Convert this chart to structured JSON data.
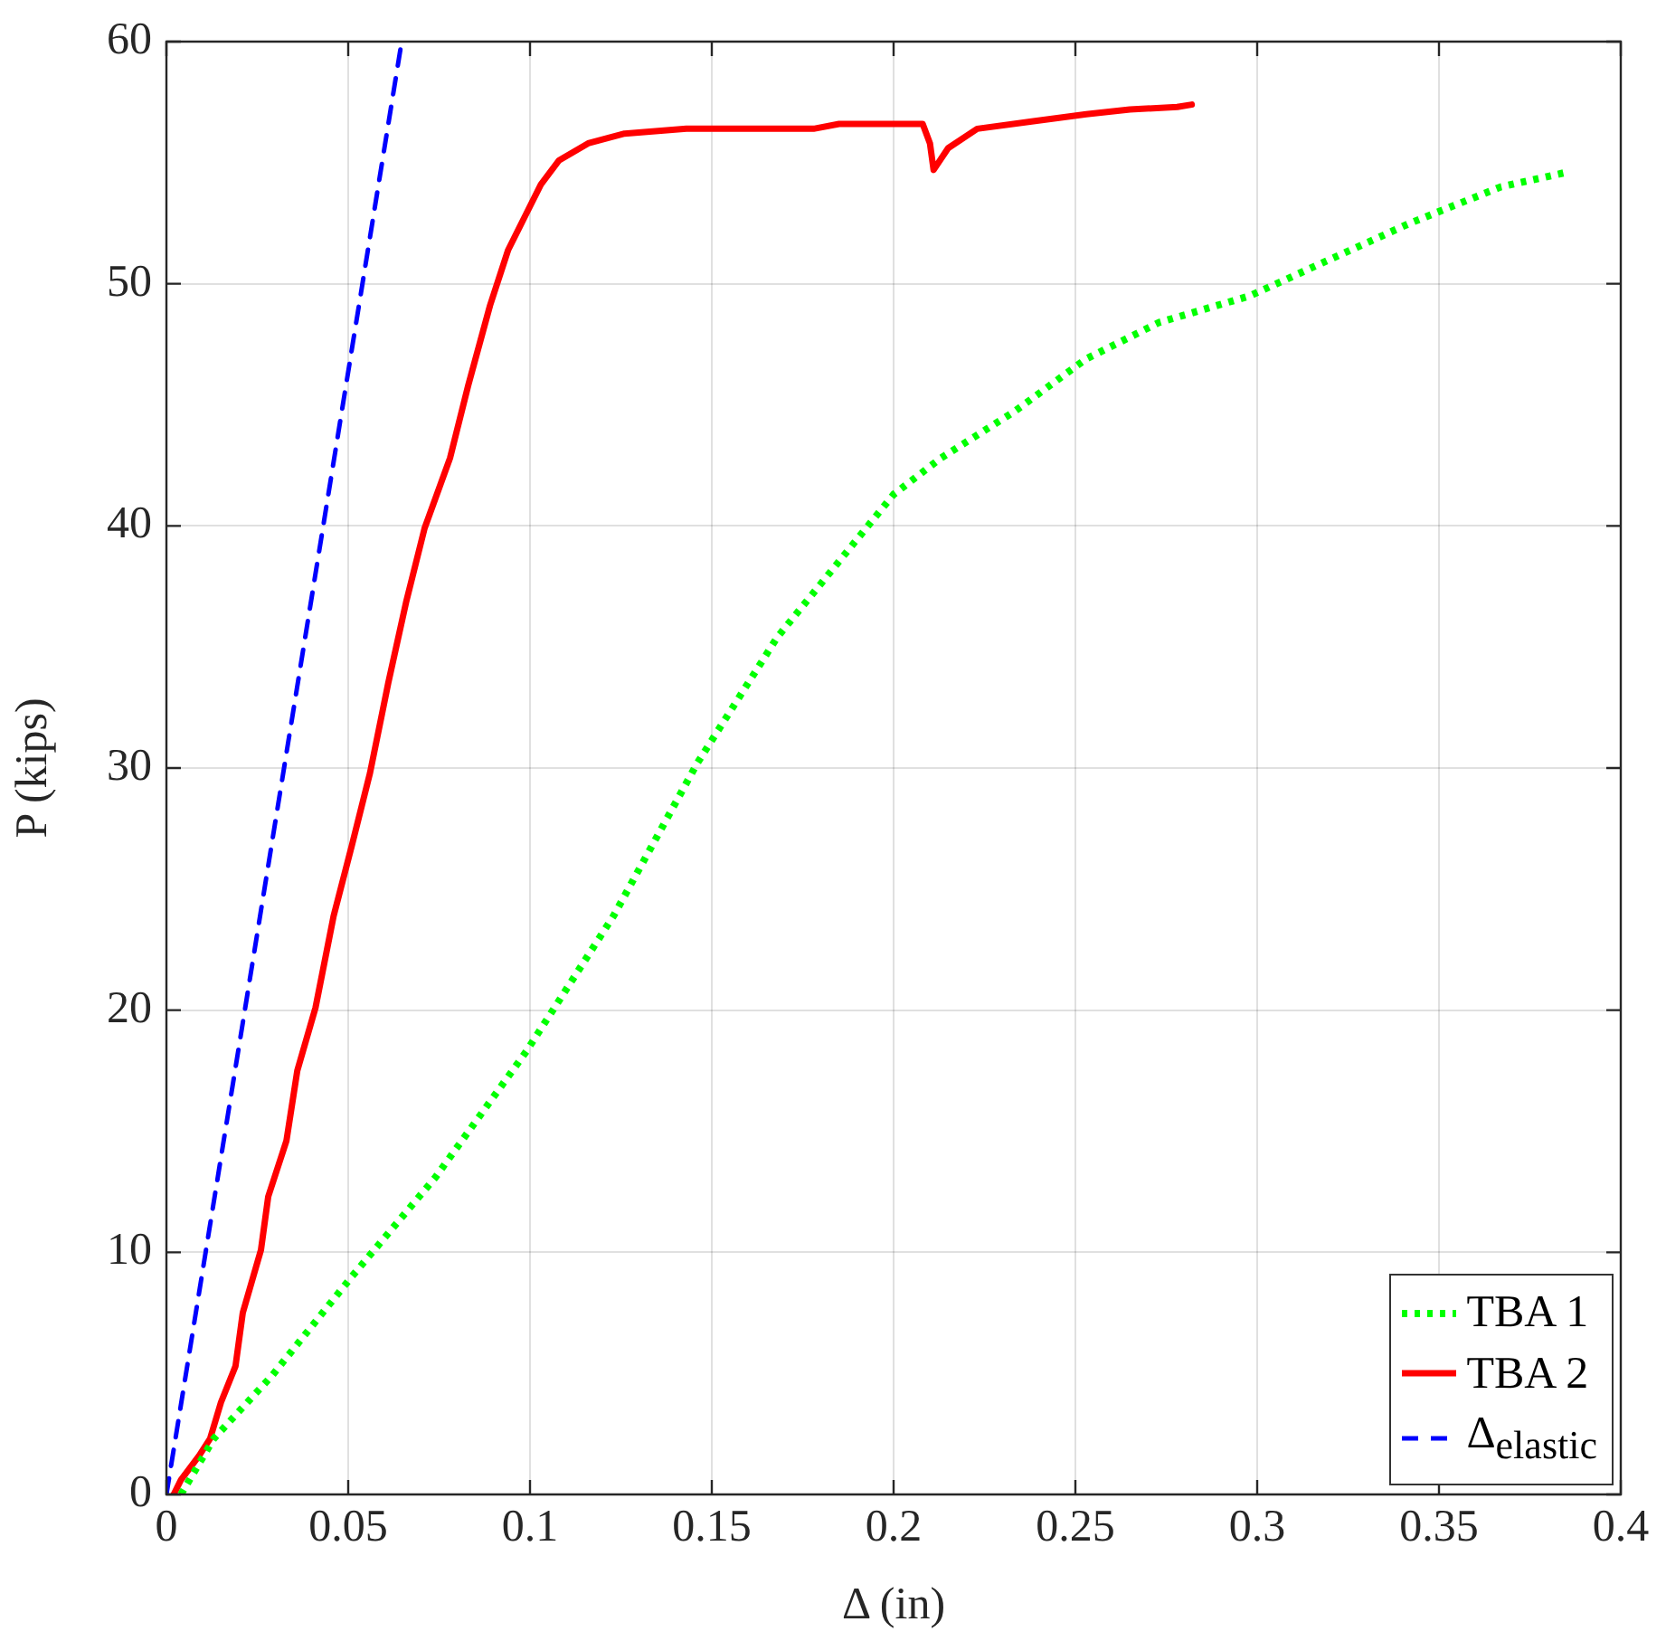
{
  "chart_data": {
    "type": "line",
    "xlabel": "Δ (in)",
    "ylabel": "P (kips)",
    "xlim": [
      0,
      0.4
    ],
    "xticks": [
      0,
      0.05,
      0.1,
      0.15,
      0.2,
      0.25,
      0.3,
      0.35,
      0.4
    ],
    "ylim": [
      0,
      60
    ],
    "yticks": [
      0,
      10,
      20,
      30,
      40,
      50,
      60
    ],
    "grid": true,
    "legend": "bottom right",
    "series": [
      {
        "name": "TBA 1",
        "color": "#00ff00",
        "line_style": "dotted",
        "x": [
          0.004,
          0.013,
          0.029,
          0.051,
          0.074,
          0.099,
          0.123,
          0.146,
          0.168,
          0.2,
          0.213,
          0.233,
          0.253,
          0.273,
          0.298,
          0.317,
          0.342,
          0.367,
          0.385
        ],
        "values": [
          0,
          2.3,
          4.9,
          9.0,
          13.1,
          18.3,
          23.9,
          30.2,
          35.4,
          41.3,
          42.8,
          44.7,
          46.9,
          48.4,
          49.5,
          50.8,
          52.5,
          54.0,
          54.6
        ]
      },
      {
        "name": "TBA 2",
        "color": "#ff0000",
        "line_style": "solid",
        "x": [
          0.002,
          0.004,
          0.009,
          0.012,
          0.015,
          0.019,
          0.021,
          0.026,
          0.028,
          0.033,
          0.036,
          0.041,
          0.046,
          0.051,
          0.056,
          0.061,
          0.066,
          0.071,
          0.078,
          0.083,
          0.089,
          0.094,
          0.099,
          0.103,
          0.108,
          0.116,
          0.126,
          0.143,
          0.178,
          0.185,
          0.208,
          0.21,
          0.211,
          0.215,
          0.223,
          0.238,
          0.253,
          0.265,
          0.278,
          0.282
        ],
        "values": [
          0,
          0.6,
          1.6,
          2.3,
          3.8,
          5.3,
          7.5,
          10.1,
          12.3,
          14.6,
          17.5,
          20.1,
          23.9,
          26.8,
          29.8,
          33.5,
          36.9,
          39.9,
          42.8,
          45.8,
          49.1,
          51.4,
          52.9,
          54.1,
          55.1,
          55.8,
          56.2,
          56.4,
          56.4,
          56.6,
          56.6,
          55.8,
          54.7,
          55.6,
          56.4,
          56.7,
          57.0,
          57.2,
          57.3,
          57.4
        ]
      },
      {
        "name": "Δ$_{elastic}$",
        "color": "#0000ff",
        "line_style": "dashed",
        "x": [
          0,
          0.0647
        ],
        "values": [
          0,
          60
        ]
      }
    ]
  }
}
